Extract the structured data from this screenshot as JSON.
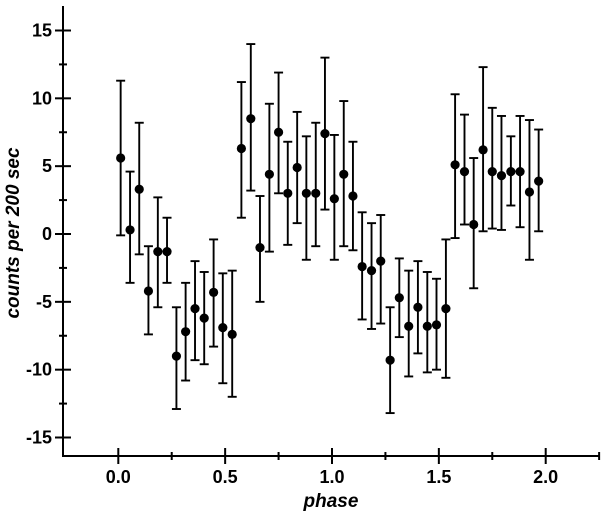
{
  "colors": {
    "foreground": "#000000",
    "background": "#ffffff"
  },
  "chart_data": {
    "type": "scatter",
    "title": "",
    "xlabel": "phase",
    "ylabel": "counts per 200 sec",
    "xlim": [
      -0.26,
      2.25
    ],
    "ylim": [
      -16.4,
      16.8
    ],
    "grid": false,
    "legend": null,
    "marker": "filled-circle",
    "error_bars": true,
    "x_major_ticks": {
      "values": [
        0.0,
        0.5,
        1.0,
        1.5,
        2.0
      ],
      "labels": [
        "0.0",
        "0.5",
        "1.0",
        "1.5",
        "2.0"
      ]
    },
    "x_minor_ticks": [
      0.25,
      0.75,
      1.25,
      1.75,
      2.25
    ],
    "y_major_ticks": {
      "values": [
        15,
        10,
        5,
        0,
        -5,
        -10,
        -15
      ],
      "labels": [
        "15",
        "10",
        "5",
        "0",
        "-5",
        "-10",
        "-15"
      ]
    },
    "y_minor_ticks": [
      12.5,
      7.5,
      2.5,
      -2.5,
      -7.5,
      -12.5
    ],
    "series": [
      {
        "name": "counts per 200 sec vs phase",
        "points": [
          {
            "p": 0.011,
            "v": 5.6,
            "lo": -0.1,
            "hi": 11.3
          },
          {
            "p": 0.055,
            "v": 0.3,
            "lo": -3.6,
            "hi": 4.6
          },
          {
            "p": 0.098,
            "v": 3.3,
            "lo": -1.5,
            "hi": 8.2
          },
          {
            "p": 0.141,
            "v": -4.2,
            "lo": -7.4,
            "hi": -0.9
          },
          {
            "p": 0.185,
            "v": -1.3,
            "lo": -5.4,
            "hi": 2.7
          },
          {
            "p": 0.228,
            "v": -1.3,
            "lo": -3.6,
            "hi": 1.2
          },
          {
            "p": 0.272,
            "v": -9.0,
            "lo": -12.9,
            "hi": -5.4
          },
          {
            "p": 0.315,
            "v": -7.2,
            "lo": -10.8,
            "hi": -3.6
          },
          {
            "p": 0.359,
            "v": -5.5,
            "lo": -9.3,
            "hi": -2.0
          },
          {
            "p": 0.402,
            "v": -6.2,
            "lo": -9.6,
            "hi": -2.8
          },
          {
            "p": 0.446,
            "v": -4.3,
            "lo": -8.3,
            "hi": -0.4
          },
          {
            "p": 0.489,
            "v": -6.9,
            "lo": -11.0,
            "hi": -2.9
          },
          {
            "p": 0.533,
            "v": -7.4,
            "lo": -12.0,
            "hi": -2.7
          },
          {
            "p": 0.576,
            "v": 6.3,
            "lo": 1.2,
            "hi": 11.2
          },
          {
            "p": 0.62,
            "v": 8.5,
            "lo": 3.2,
            "hi": 14.0
          },
          {
            "p": 0.663,
            "v": -1.0,
            "lo": -5.0,
            "hi": 2.8
          },
          {
            "p": 0.707,
            "v": 4.4,
            "lo": -1.3,
            "hi": 9.6
          },
          {
            "p": 0.75,
            "v": 7.5,
            "lo": 3.0,
            "hi": 11.9
          },
          {
            "p": 0.793,
            "v": 3.0,
            "lo": -0.8,
            "hi": 6.8
          },
          {
            "p": 0.837,
            "v": 4.9,
            "lo": 0.8,
            "hi": 9.0
          },
          {
            "p": 0.88,
            "v": 3.0,
            "lo": -1.9,
            "hi": 7.2
          },
          {
            "p": 0.924,
            "v": 3.0,
            "lo": -0.9,
            "hi": 8.2
          },
          {
            "p": 0.967,
            "v": 7.4,
            "lo": 1.8,
            "hi": 13.0
          },
          {
            "p": 1.011,
            "v": 2.6,
            "lo": -1.9,
            "hi": 7.3
          },
          {
            "p": 1.055,
            "v": 4.4,
            "lo": -0.9,
            "hi": 9.8
          },
          {
            "p": 1.098,
            "v": 2.8,
            "lo": -1.2,
            "hi": 6.8
          },
          {
            "p": 1.141,
            "v": -2.4,
            "lo": -6.3,
            "hi": 1.6
          },
          {
            "p": 1.185,
            "v": -2.7,
            "lo": -7.0,
            "hi": 0.8
          },
          {
            "p": 1.228,
            "v": -2.0,
            "lo": -6.6,
            "hi": 1.4
          },
          {
            "p": 1.272,
            "v": -9.3,
            "lo": -13.2,
            "hi": -5.4
          },
          {
            "p": 1.315,
            "v": -4.7,
            "lo": -7.6,
            "hi": -1.8
          },
          {
            "p": 1.359,
            "v": -6.8,
            "lo": -10.5,
            "hi": -2.7
          },
          {
            "p": 1.402,
            "v": -5.4,
            "lo": -8.8,
            "hi": -2.0
          },
          {
            "p": 1.446,
            "v": -6.8,
            "lo": -10.2,
            "hi": -2.8
          },
          {
            "p": 1.489,
            "v": -6.7,
            "lo": -10.0,
            "hi": -3.3
          },
          {
            "p": 1.533,
            "v": -5.5,
            "lo": -10.6,
            "hi": -0.4
          },
          {
            "p": 1.576,
            "v": 5.1,
            "lo": -0.3,
            "hi": 10.3
          },
          {
            "p": 1.62,
            "v": 4.6,
            "lo": 0.7,
            "hi": 8.8
          },
          {
            "p": 1.663,
            "v": 0.7,
            "lo": -4.0,
            "hi": 5.6
          },
          {
            "p": 1.707,
            "v": 6.2,
            "lo": 0.2,
            "hi": 12.3
          },
          {
            "p": 1.75,
            "v": 4.6,
            "lo": 0.4,
            "hi": 9.3
          },
          {
            "p": 1.793,
            "v": 4.3,
            "lo": 0.3,
            "hi": 8.7
          },
          {
            "p": 1.837,
            "v": 4.6,
            "lo": 2.1,
            "hi": 7.2
          },
          {
            "p": 1.88,
            "v": 4.6,
            "lo": 0.5,
            "hi": 8.7
          },
          {
            "p": 1.924,
            "v": 3.1,
            "lo": -1.9,
            "hi": 8.4
          },
          {
            "p": 1.967,
            "v": 3.9,
            "lo": 0.2,
            "hi": 7.7
          }
        ]
      }
    ]
  }
}
